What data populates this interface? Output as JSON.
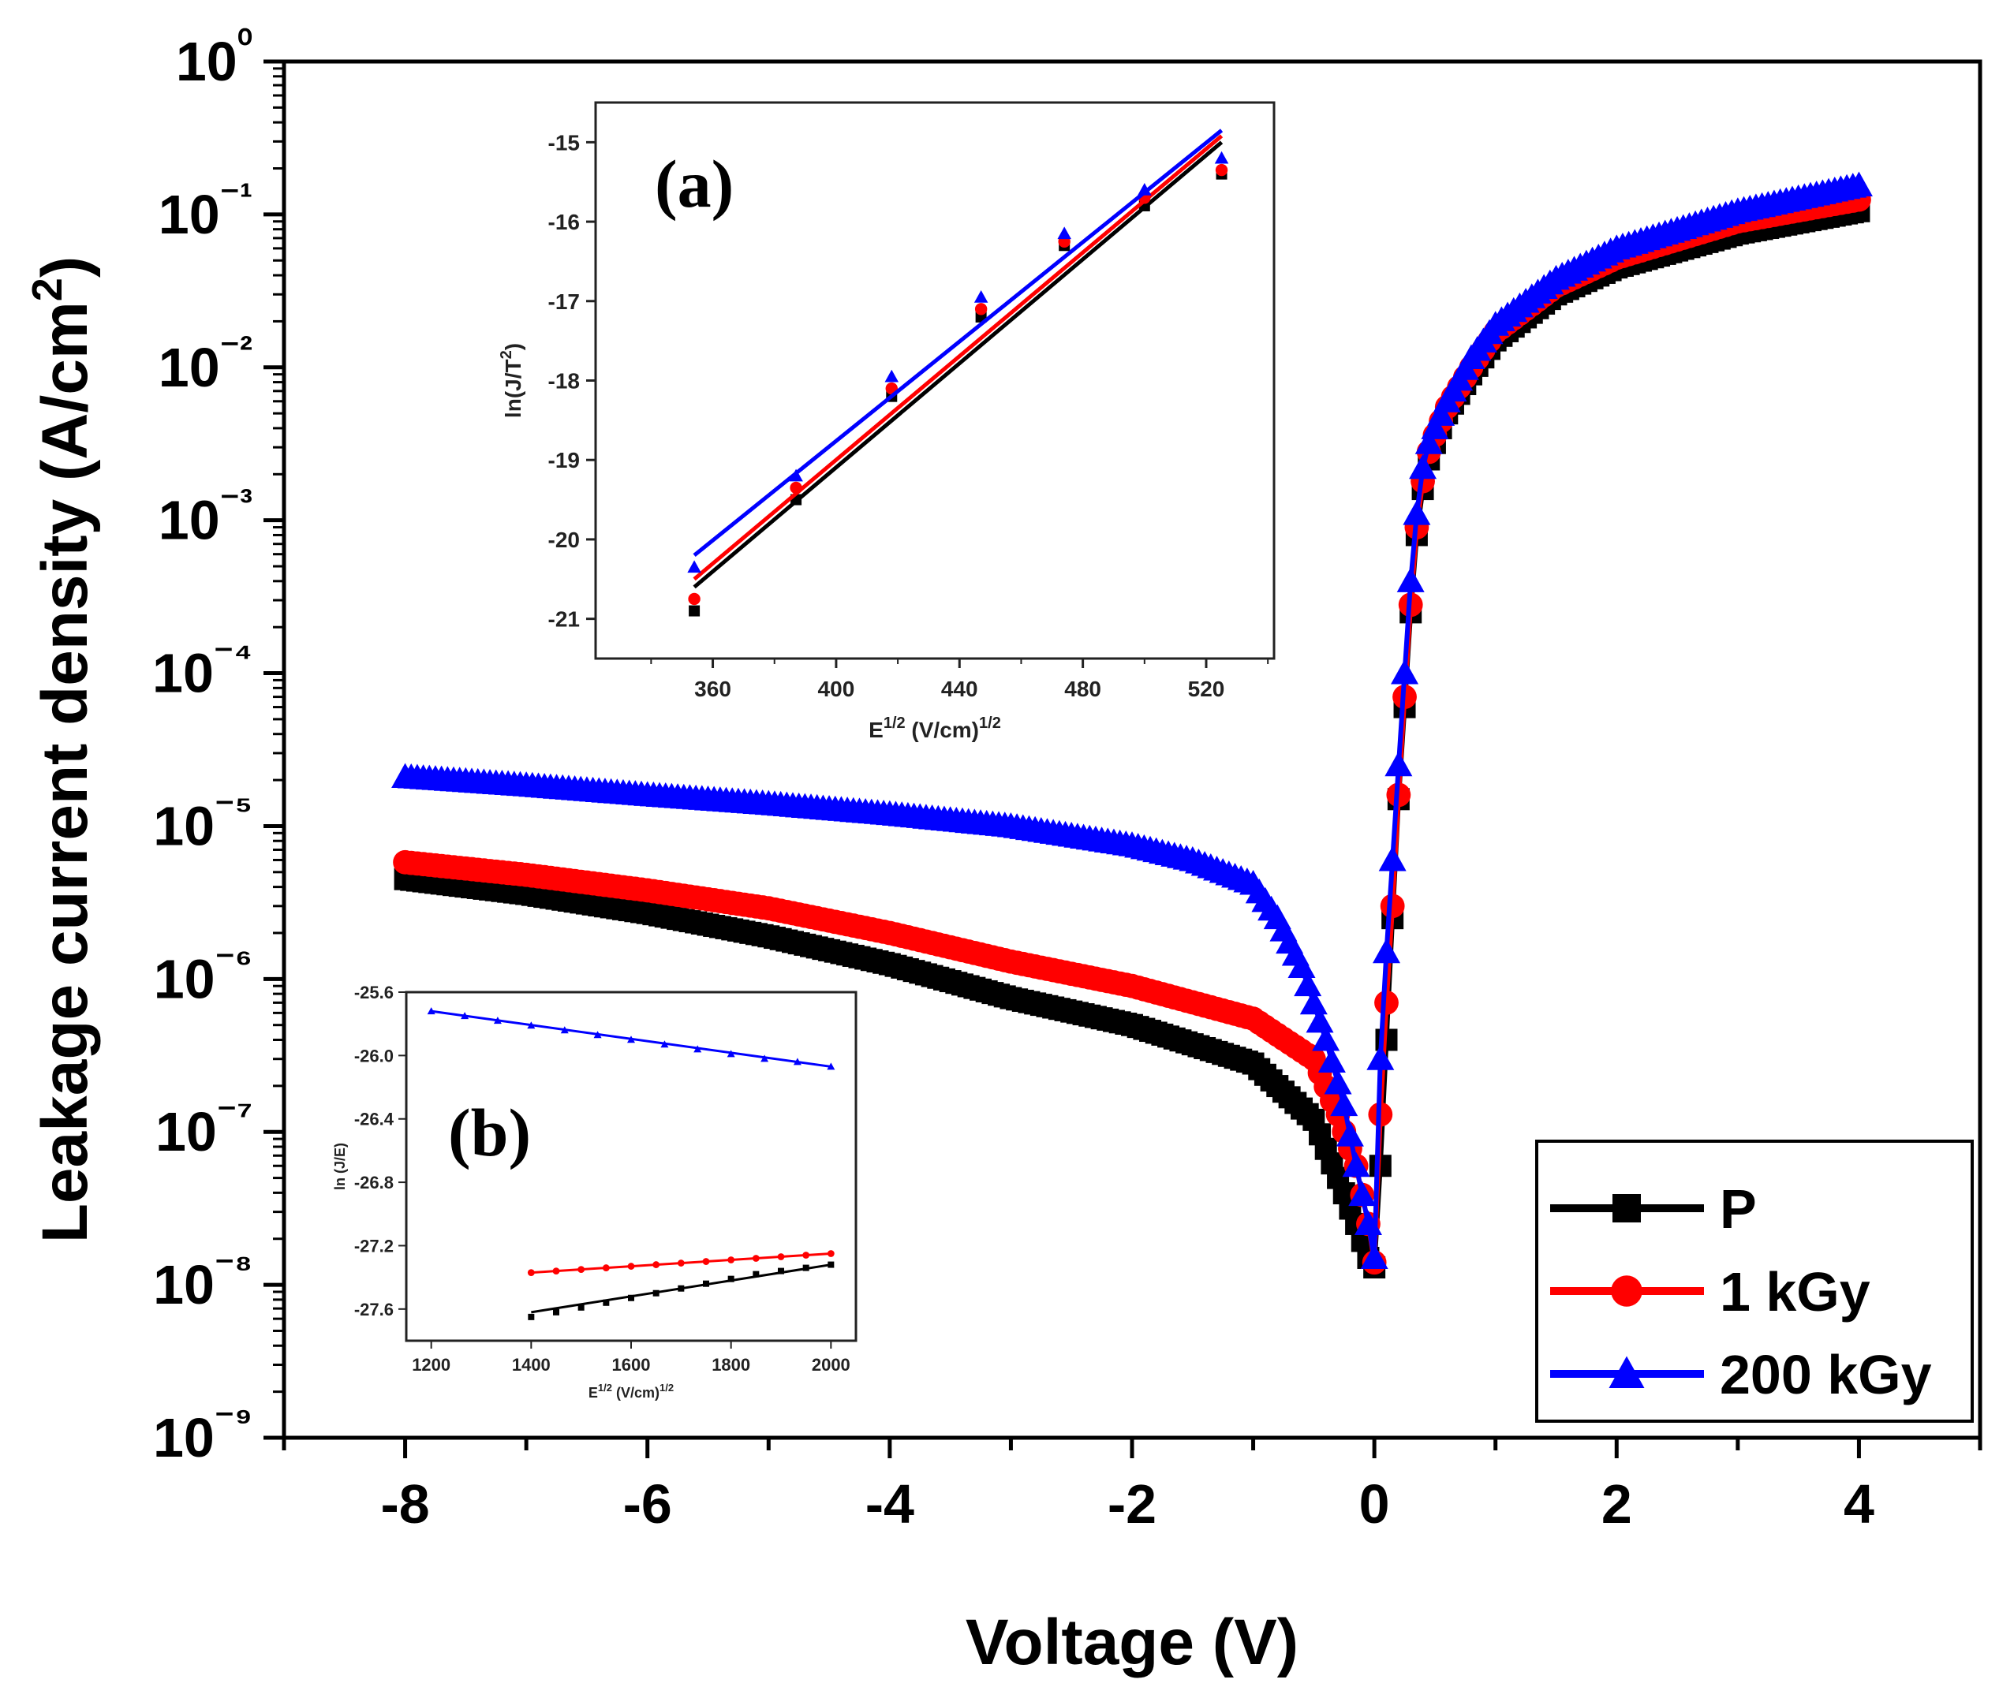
{
  "colors": {
    "P": "#000000",
    "1 kGy": "#ff0000",
    "200 kGy": "#0000ff"
  },
  "chart_data": [
    {
      "type": "scatter",
      "title": "",
      "xlabel": "Voltage (V)",
      "ylabel": "Leakage current density (A/cm²)",
      "xlim": [
        -9,
        5
      ],
      "ylim": [
        1e-09,
        1
      ],
      "yscale": "log",
      "xticks": [
        "-8",
        "-6",
        "-4",
        "-2",
        "0",
        "2",
        "4"
      ],
      "yticks": [
        "10⁻⁹",
        "10⁻⁸",
        "10⁻⁷",
        "10⁻⁶",
        "10⁻⁵",
        "10⁻⁴",
        "10⁻³",
        "10⁻²",
        "10⁻¹",
        "10⁰"
      ],
      "legend_position": "bottom-right",
      "series": [
        {
          "name": "P",
          "marker": "square",
          "color": "#000000",
          "x": [
            -8,
            -7,
            -6,
            -5,
            -4,
            -3,
            -2,
            -1,
            -0.5,
            -0.3,
            -0.15,
            -0.05,
            0,
            0.05,
            0.1,
            0.15,
            0.2,
            0.25,
            0.3,
            0.35,
            0.4,
            0.45,
            0.5,
            0.6,
            0.8,
            1,
            1.5,
            2,
            3,
            4
          ],
          "y": [
            4.5e-06,
            3.6e-06,
            2.7e-06,
            1.9e-06,
            1.25e-06,
            7.5e-07,
            5e-07,
            2.8e-07,
            1.2e-07,
            5e-08,
            2.5e-08,
            1.5e-08,
            1.3e-08,
            6e-08,
            4e-07,
            2.5e-06,
            1.5e-05,
            6e-05,
            0.00025,
            0.0008,
            0.0016,
            0.0025,
            0.0032,
            0.005,
            0.009,
            0.015,
            0.03,
            0.045,
            0.075,
            0.105
          ]
        },
        {
          "name": "1 kGy",
          "marker": "circle",
          "color": "#ff0000",
          "x": [
            -8,
            -7,
            -6,
            -5,
            -4,
            -3,
            -2,
            -1,
            -0.5,
            -0.3,
            -0.15,
            -0.05,
            0,
            0.05,
            0.1,
            0.15,
            0.2,
            0.25,
            0.3,
            0.35,
            0.4,
            0.45,
            0.5,
            0.6,
            0.8,
            1,
            1.5,
            2,
            3,
            4
          ],
          "y": [
            5.8e-06,
            4.8e-06,
            3.8e-06,
            2.9e-06,
            2e-06,
            1.3e-06,
            9e-07,
            5.5e-07,
            3e-07,
            1.3e-07,
            6e-08,
            2.5e-08,
            1.4e-08,
            1.3e-07,
            7e-07,
            3e-06,
            1.6e-05,
            7e-05,
            0.00028,
            0.0009,
            0.0018,
            0.0028,
            0.0036,
            0.0055,
            0.01,
            0.017,
            0.034,
            0.052,
            0.09,
            0.125
          ]
        },
        {
          "name": "200 kGy",
          "marker": "triangle",
          "color": "#0000ff",
          "x": [
            -8,
            -7,
            -6,
            -5,
            -4,
            -3,
            -2,
            -1.5,
            -1,
            -0.8,
            -0.6,
            -0.4,
            -0.25,
            -0.15,
            -0.05,
            0,
            0.05,
            0.1,
            0.15,
            0.2,
            0.25,
            0.3,
            0.35,
            0.4,
            0.45,
            0.5,
            0.6,
            0.8,
            1,
            1.5,
            2,
            3,
            4
          ],
          "y": [
            2.1e-05,
            1.85e-05,
            1.6e-05,
            1.4e-05,
            1.2e-05,
            1e-05,
            7.5e-06,
            6e-06,
            4.2e-06,
            2.5e-06,
            1.2e-06,
            4e-07,
            1.5e-07,
            6e-08,
            2.5e-08,
            1.5e-08,
            3e-07,
            1.5e-06,
            6e-06,
            2.5e-05,
            0.0001,
            0.0004,
            0.0011,
            0.0022,
            0.0032,
            0.004,
            0.006,
            0.0115,
            0.019,
            0.038,
            0.06,
            0.105,
            0.155
          ]
        }
      ]
    },
    {
      "type": "scatter",
      "panel": "(a)",
      "xlabel": "E^1/2 (V/cm)^1/2",
      "xlabel_base": "E",
      "xlabel_sup": "1/2",
      "xlabel_unit": " (V/cm)",
      "xlabel_unit_sup": "1/2",
      "ylabel": "ln(J/T^2)",
      "ylabel_pre": "ln(J/T",
      "ylabel_sup": "2",
      "ylabel_post": ")",
      "xlim": [
        322,
        542
      ],
      "ylim": [
        -21.5,
        -14.5
      ],
      "xticks": [
        "360",
        "400",
        "440",
        "480",
        "520"
      ],
      "yticks": [
        "-15",
        "-16",
        "-17",
        "-18",
        "-19",
        "-20",
        "-21"
      ],
      "series": [
        {
          "name": "P",
          "marker": "square",
          "color": "#000000",
          "x": [
            354,
            387,
            418,
            447,
            474,
            500,
            525
          ],
          "y": [
            -20.9,
            -19.5,
            -18.2,
            -17.2,
            -16.3,
            -15.8,
            -15.4
          ],
          "fit": {
            "x": [
              354,
              525
            ],
            "y": [
              -20.6,
              -15.0
            ]
          }
        },
        {
          "name": "1 kGy",
          "marker": "circle",
          "color": "#ff0000",
          "x": [
            354,
            387,
            418,
            447,
            474,
            500,
            525
          ],
          "y": [
            -20.75,
            -19.35,
            -18.1,
            -17.1,
            -16.25,
            -15.7,
            -15.35
          ],
          "fit": {
            "x": [
              354,
              525
            ],
            "y": [
              -20.5,
              -14.92
            ]
          }
        },
        {
          "name": "200 kGy",
          "marker": "triangle",
          "color": "#0000ff",
          "x": [
            354,
            387,
            418,
            447,
            474,
            500,
            525
          ],
          "y": [
            -20.35,
            -19.2,
            -17.95,
            -16.95,
            -16.15,
            -15.6,
            -15.2
          ],
          "fit": {
            "x": [
              354,
              525
            ],
            "y": [
              -20.2,
              -14.85
            ]
          }
        }
      ]
    },
    {
      "type": "scatter",
      "panel": "(b)",
      "xlabel": "E^1/2 (V/cm)^1/2",
      "xlabel_base": "E",
      "xlabel_sup": "1/2",
      "xlabel_unit": " (V/cm)",
      "xlabel_unit_sup": "1/2",
      "ylabel": "ln (J/E)",
      "xlim": [
        1150,
        2050
      ],
      "ylim": [
        -27.8,
        -25.6
      ],
      "xticks": [
        "1200",
        "1400",
        "1600",
        "1800",
        "2000"
      ],
      "yticks": [
        "-25.6",
        "-26.0",
        "-26.4",
        "-26.8",
        "-27.2",
        "-27.6"
      ],
      "series": [
        {
          "name": "200 kGy",
          "marker": "triangle",
          "color": "#0000ff",
          "x": [
            1200,
            1267,
            1333,
            1400,
            1467,
            1533,
            1600,
            1667,
            1733,
            1800,
            1867,
            1933,
            2000
          ],
          "y": [
            -25.72,
            -25.75,
            -25.78,
            -25.81,
            -25.84,
            -25.87,
            -25.9,
            -25.93,
            -25.96,
            -25.99,
            -26.02,
            -26.04,
            -26.07
          ],
          "fit": {
            "x": [
              1200,
              2000
            ],
            "y": [
              -25.72,
              -26.07
            ]
          }
        },
        {
          "name": "1 kGy",
          "marker": "circle",
          "color": "#ff0000",
          "x": [
            1400,
            1450,
            1500,
            1550,
            1600,
            1650,
            1700,
            1750,
            1800,
            1850,
            1900,
            1950,
            2000
          ],
          "y": [
            -27.37,
            -27.36,
            -27.35,
            -27.34,
            -27.33,
            -27.32,
            -27.31,
            -27.3,
            -27.29,
            -27.28,
            -27.27,
            -27.26,
            -27.25
          ],
          "fit": {
            "x": [
              1400,
              2000
            ],
            "y": [
              -27.37,
              -27.25
            ]
          }
        },
        {
          "name": "P",
          "marker": "square",
          "color": "#000000",
          "x": [
            1400,
            1450,
            1500,
            1550,
            1600,
            1650,
            1700,
            1750,
            1800,
            1850,
            1900,
            1950,
            2000
          ],
          "y": [
            -27.65,
            -27.62,
            -27.59,
            -27.56,
            -27.53,
            -27.5,
            -27.47,
            -27.44,
            -27.41,
            -27.38,
            -27.36,
            -27.34,
            -27.32
          ],
          "fit": {
            "x": [
              1400,
              2000
            ],
            "y": [
              -27.62,
              -27.32
            ]
          }
        }
      ]
    }
  ]
}
